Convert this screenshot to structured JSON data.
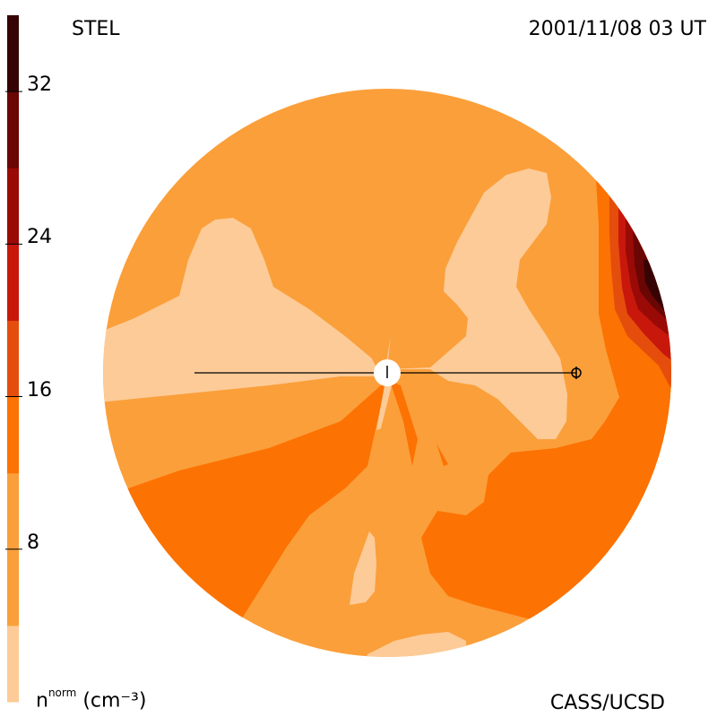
{
  "header": {
    "source": "STEL",
    "datetime": "2001/11/08 03 UT",
    "credit": "CASS/UCSD"
  },
  "colorbar": {
    "unit_symbol": "n",
    "unit_superscript": "norm",
    "unit_text": "(cm⁻³)",
    "ticks": [
      {
        "value": 8,
        "label": "8"
      },
      {
        "value": 16,
        "label": "16"
      },
      {
        "value": 24,
        "label": "24"
      },
      {
        "value": 32,
        "label": "32"
      }
    ],
    "range": [
      0,
      36
    ],
    "levels": [
      {
        "from": 0,
        "to": 4,
        "color": "#fccb98"
      },
      {
        "from": 4,
        "to": 12,
        "color": "#fb9f3a"
      },
      {
        "from": 12,
        "to": 16,
        "color": "#fc7203"
      },
      {
        "from": 16,
        "to": 20,
        "color": "#e44d0c"
      },
      {
        "from": 20,
        "to": 24,
        "color": "#c8180c"
      },
      {
        "from": 24,
        "to": 28,
        "color": "#9a0a06"
      },
      {
        "from": 28,
        "to": 32,
        "color": "#6a0604"
      },
      {
        "from": 32,
        "to": 36,
        "color": "#360404"
      }
    ]
  },
  "map": {
    "background_color": "#fb9f3a",
    "sun_marker": "sun-icon",
    "earth_marker": "earth-icon"
  }
}
